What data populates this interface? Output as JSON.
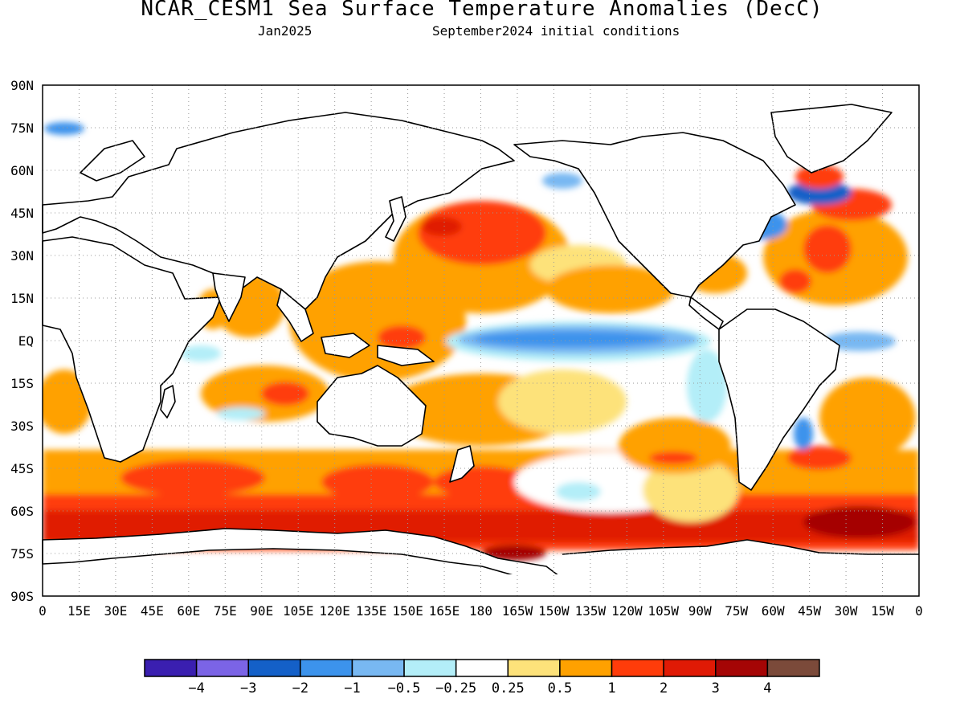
{
  "title": "NCAR_CESM1 Sea Surface Temperature Anomalies (DecC)",
  "subtitle_left": "Jan2025",
  "subtitle_right": "September2024 initial conditions",
  "lat_labels": [
    "90N",
    "75N",
    "60N",
    "45N",
    "30N",
    "15N",
    "EQ",
    "15S",
    "30S",
    "45S",
    "60S",
    "75S",
    "90S"
  ],
  "lon_labels": [
    "0",
    "15E",
    "30E",
    "45E",
    "60E",
    "75E",
    "90E",
    "105E",
    "120E",
    "135E",
    "150E",
    "165E",
    "180",
    "165W",
    "150W",
    "135W",
    "120W",
    "105W",
    "90W",
    "75W",
    "60W",
    "45W",
    "30W",
    "15W",
    "0"
  ],
  "colorbar": {
    "colors": [
      "#3a1fb0",
      "#7b64e6",
      "#1460c8",
      "#3c93ec",
      "#78b8f2",
      "#b3eef8",
      "#ffffff",
      "#fde27a",
      "#ffa100",
      "#ff3c0a",
      "#e01a05",
      "#a50505",
      "#7b4a3a"
    ],
    "labels": [
      "−4",
      "−3",
      "−2",
      "−1",
      "−0.5",
      "−0.25",
      "0.25",
      "0.5",
      "1",
      "2",
      "3",
      "4"
    ]
  },
  "colors": {
    "land": "#ffffff",
    "coast": "#000000",
    "grid": "#9a9a9a"
  }
}
